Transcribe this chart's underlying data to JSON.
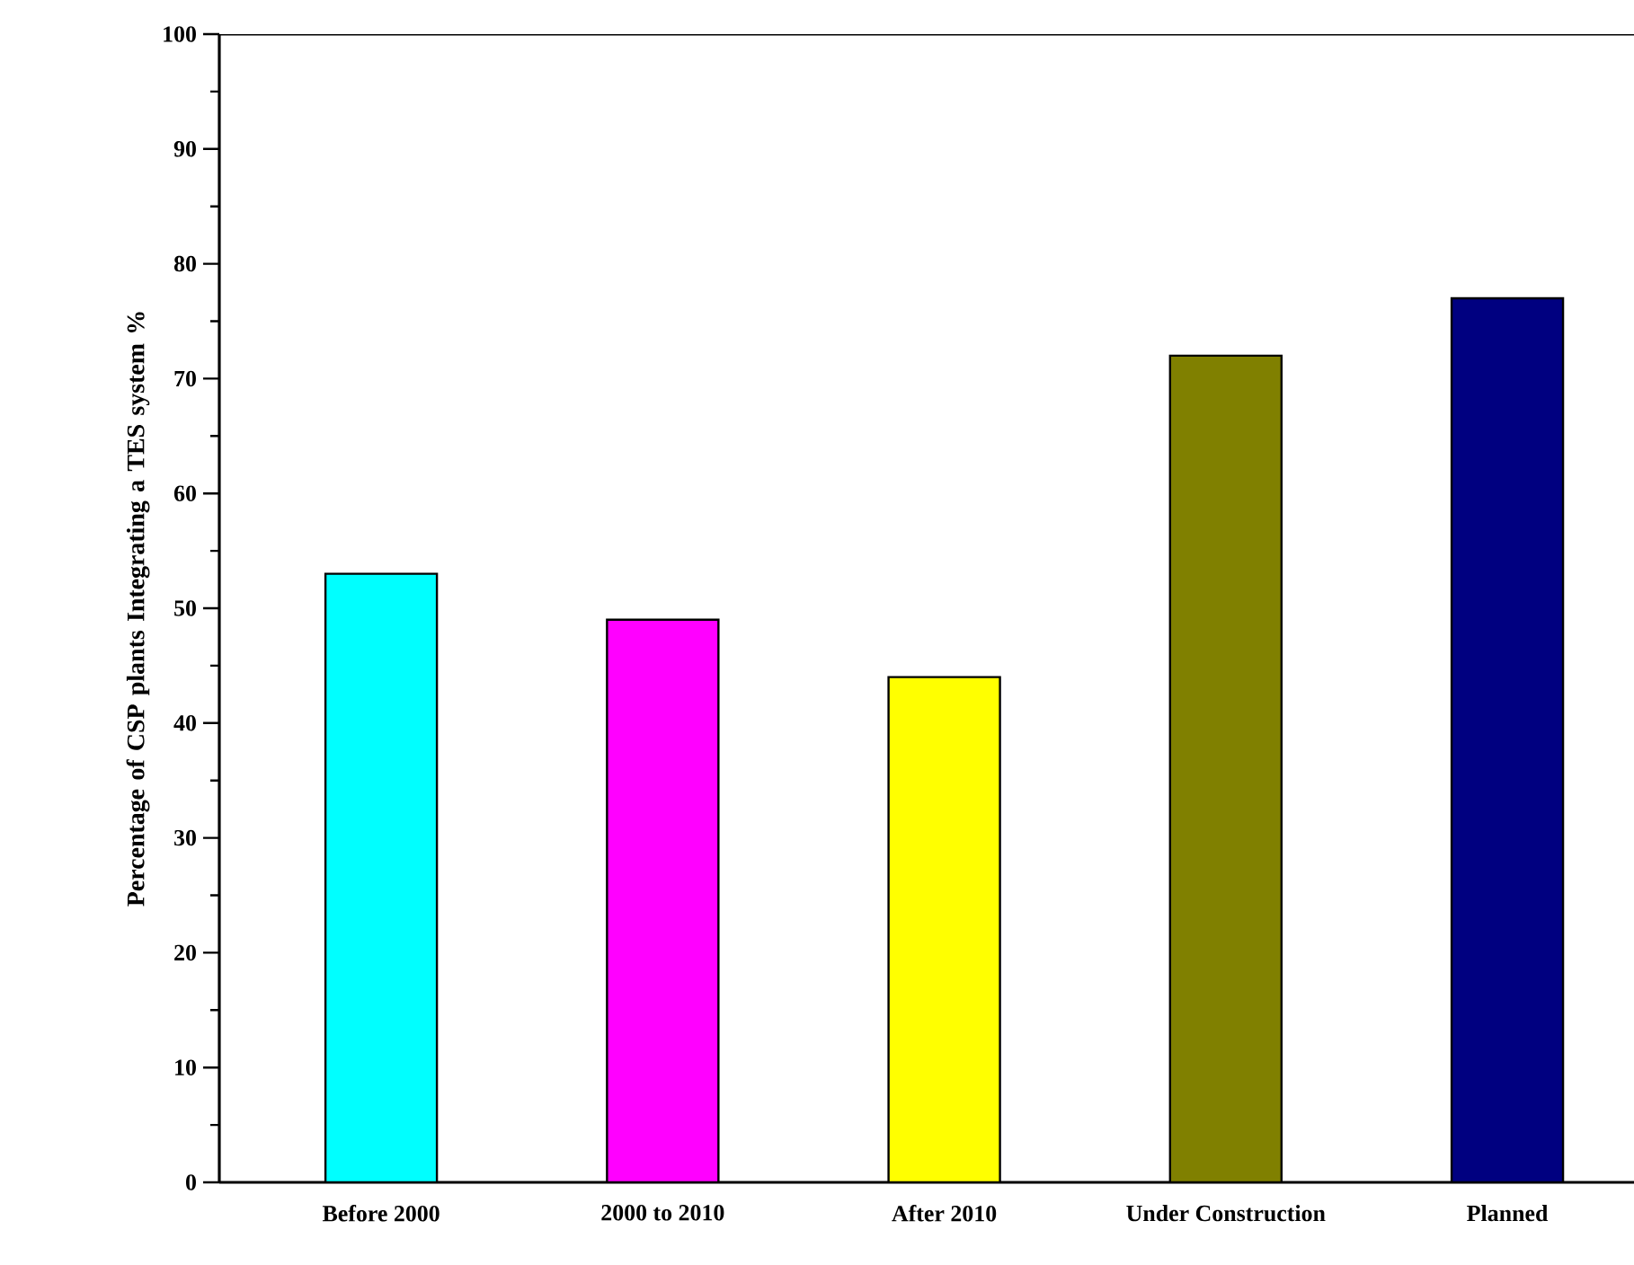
{
  "chart_data": {
    "type": "bar",
    "ylabel": "Percentage of CSP plants Integrating a TES system %",
    "categories": [
      "Before 2000",
      "2000 to 2010",
      "After 2010",
      "Under Construction",
      "Planned"
    ],
    "values": [
      53,
      49,
      44,
      72,
      77
    ],
    "colors": [
      "#00ffff",
      "#ff00ff",
      "#ffff00",
      "#808000",
      "#000080"
    ],
    "ylim": [
      0,
      100
    ],
    "yticks": [
      0,
      10,
      20,
      30,
      40,
      50,
      60,
      70,
      80,
      90,
      100
    ],
    "grid": false
  }
}
